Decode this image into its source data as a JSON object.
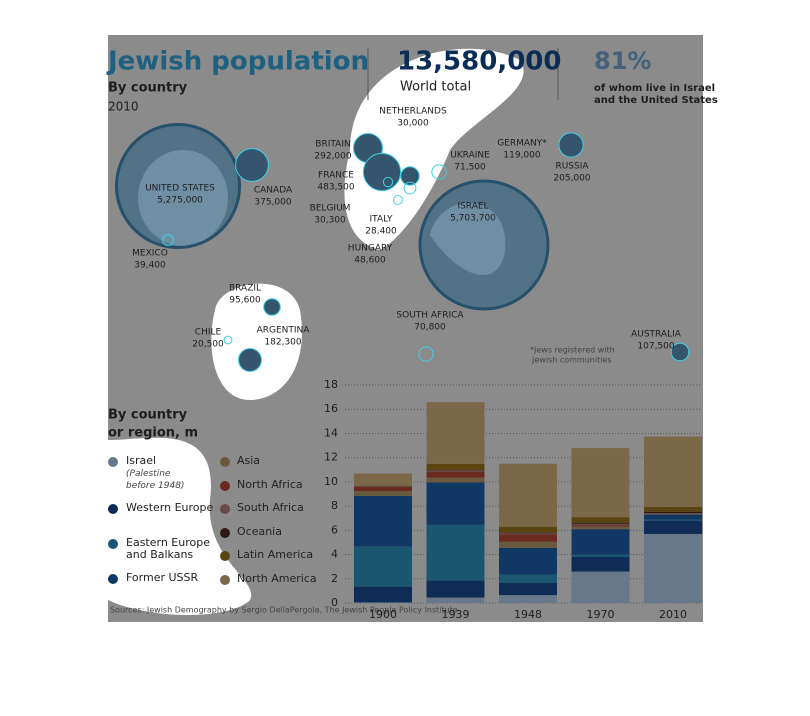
{
  "header": {
    "title": "Jewish population",
    "subtitle": "By country",
    "year": "2010",
    "total": "13,580,000",
    "total_label": "World total",
    "share": "81%",
    "share_text_1": "of whom live in Israel",
    "share_text_2": "and the United States"
  },
  "map": {
    "countries": [
      {
        "name": "UNITED STATES",
        "value": 5275000,
        "label": "5,275,000"
      },
      {
        "name": "CANADA",
        "value": 375000,
        "label": "375,000"
      },
      {
        "name": "MEXICO",
        "value": 39400,
        "label": "39,400"
      },
      {
        "name": "BRAZIL",
        "value": 95600,
        "label": "95,600"
      },
      {
        "name": "CHILE",
        "value": 20500,
        "label": "20,500"
      },
      {
        "name": "ARGENTINA",
        "value": 182300,
        "label": "182,300"
      },
      {
        "name": "NETHERLANDS",
        "value": 30000,
        "label": "30,000"
      },
      {
        "name": "BRITAIN",
        "value": 292000,
        "label": "292,000"
      },
      {
        "name": "FRANCE",
        "value": 483500,
        "label": "483,500"
      },
      {
        "name": "BELGIUM",
        "value": 30300,
        "label": "30,300"
      },
      {
        "name": "GERMANY*",
        "value": 119000,
        "label": "119,000"
      },
      {
        "name": "UKRAINE",
        "value": 71500,
        "label": "71,500"
      },
      {
        "name": "ITALY",
        "value": 28400,
        "label": "28,400"
      },
      {
        "name": "HUNGARY",
        "value": 48600,
        "label": "48,600"
      },
      {
        "name": "ISRAEL",
        "value": 5703700,
        "label": "5,703,700"
      },
      {
        "name": "RUSSIA",
        "value": 205000,
        "label": "205,000"
      },
      {
        "name": "SOUTH AFRICA",
        "value": 70800,
        "label": "70,800"
      },
      {
        "name": "AUSTRALIA",
        "value": 107500,
        "label": "107,500"
      }
    ],
    "note_1": "*Jews registered with",
    "note_2": "Jewish communities"
  },
  "chart_data": {
    "type": "stacked_bar",
    "title_1": "By country",
    "title_2": "or region, m",
    "categories": [
      "1900",
      "1939",
      "1948",
      "1970",
      "2010"
    ],
    "ylim": [
      0,
      18
    ],
    "yticks": [
      0,
      2,
      4,
      6,
      8,
      10,
      12,
      14,
      16,
      18
    ],
    "grid": true,
    "series": [
      {
        "name": "Israel",
        "note": "(Palestine before 1948)",
        "color": "#66788a",
        "values": [
          0.05,
          0.45,
          0.65,
          2.6,
          5.7
        ]
      },
      {
        "name": "Western Europe",
        "color": "#0e2c55",
        "values": [
          1.3,
          1.4,
          1.0,
          1.2,
          1.1
        ]
      },
      {
        "name": "Eastern Europe and Balkans",
        "color": "#1b5670",
        "values": [
          3.3,
          4.6,
          0.7,
          0.2,
          0.1
        ]
      },
      {
        "name": "Former USSR",
        "color": "#113864",
        "values": [
          4.2,
          3.5,
          2.2,
          2.1,
          0.4
        ]
      },
      {
        "name": "Asia",
        "color": "#6a5a3c",
        "values": [
          0.4,
          0.4,
          0.5,
          0.2,
          0.05
        ]
      },
      {
        "name": "North Africa",
        "color": "#6a2a20",
        "values": [
          0.35,
          0.5,
          0.6,
          0.1,
          0.01
        ]
      },
      {
        "name": "South Africa",
        "color": "#6c4a48",
        "values": [
          0.02,
          0.1,
          0.1,
          0.12,
          0.07
        ]
      },
      {
        "name": "Oceania",
        "color": "#2a1a14",
        "values": [
          0.02,
          0.03,
          0.05,
          0.07,
          0.11
        ]
      },
      {
        "name": "Latin America",
        "color": "#5a4412",
        "values": [
          0.05,
          0.5,
          0.5,
          0.5,
          0.4
        ]
      },
      {
        "name": "North America",
        "color": "#7a6848",
        "values": [
          1.0,
          5.1,
          5.2,
          5.7,
          5.8
        ]
      }
    ]
  },
  "source": "Sources: Jewish Demography by Sergio DellaPergola, The Jewish People Policy Institute"
}
